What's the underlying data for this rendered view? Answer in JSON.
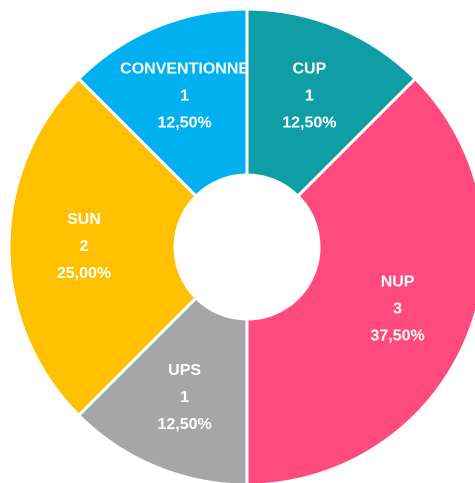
{
  "chart_data": {
    "type": "donut",
    "categories": [
      "CUP",
      "NUP",
      "UPS",
      "SUN",
      "CONVENTIONNE"
    ],
    "values": [
      1,
      3,
      1,
      2,
      1
    ],
    "percentage_labels": [
      "12,50%",
      "37,50%",
      "12,50%",
      "25,00%",
      "12,50%"
    ],
    "colors": [
      "#109ea6",
      "#ff4a7d",
      "#a6a6a6",
      "#ffc000",
      "#00b0f0"
    ]
  }
}
